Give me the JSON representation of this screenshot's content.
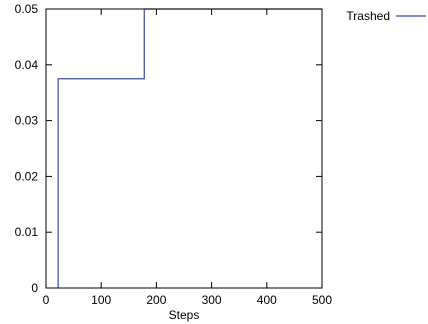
{
  "chart_data": {
    "type": "line",
    "title": "",
    "xlabel": "Steps",
    "ylabel": "",
    "xlim": [
      0,
      500
    ],
    "ylim": [
      0,
      0.05
    ],
    "x_ticks": [
      0,
      100,
      200,
      300,
      400,
      500
    ],
    "x_tick_labels": [
      "0",
      "100",
      "200",
      "300",
      "400",
      "500"
    ],
    "y_ticks": [
      0,
      0.01,
      0.02,
      0.03,
      0.04,
      0.05
    ],
    "y_tick_labels": [
      "0",
      "0.01",
      "0.02",
      "0.03",
      "0.04",
      "0.05"
    ],
    "grid": false,
    "legend_position": "top-right, outside plot",
    "series": [
      {
        "name": "Trashed",
        "color": "#3a4a9c",
        "x": [
          22,
          22,
          178,
          178,
          500
        ],
        "y": [
          0,
          0.0375,
          0.0375,
          0.05,
          0.05
        ]
      }
    ]
  }
}
